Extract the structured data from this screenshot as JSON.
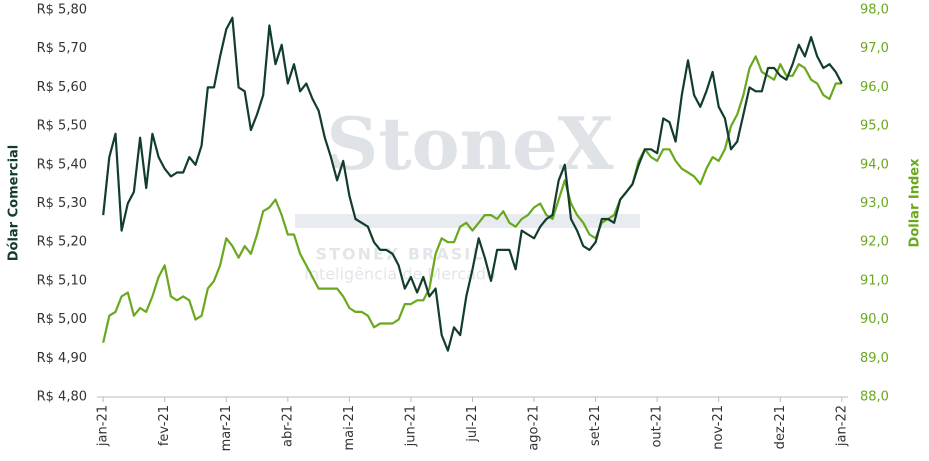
{
  "chart_data": {
    "type": "line",
    "watermark": {
      "brand": "StoneX",
      "sub": "STONEX BRASIL",
      "tagline": "Inteligência de Mercado"
    },
    "y_label": "Dólar Comercial",
    "y2_label": "Dollar Index",
    "x": [
      0,
      0.1,
      0.2,
      0.3,
      0.4,
      0.5,
      0.6,
      0.7,
      0.8,
      0.9,
      1,
      1.1,
      1.2,
      1.3,
      1.4,
      1.5,
      1.6,
      1.7,
      1.8,
      1.9,
      2,
      2.1,
      2.2,
      2.3,
      2.4,
      2.5,
      2.6,
      2.7,
      2.8,
      2.9,
      3,
      3.1,
      3.2,
      3.3,
      3.4,
      3.5,
      3.6,
      3.7,
      3.8,
      3.9,
      4,
      4.1,
      4.2,
      4.3,
      4.4,
      4.5,
      4.6,
      4.7,
      4.8,
      4.9,
      5,
      5.1,
      5.2,
      5.3,
      5.4,
      5.5,
      5.6,
      5.7,
      5.8,
      5.9,
      6,
      6.1,
      6.2,
      6.3,
      6.4,
      6.5,
      6.6,
      6.7,
      6.8,
      6.9,
      7,
      7.1,
      7.2,
      7.3,
      7.4,
      7.5,
      7.6,
      7.7,
      7.8,
      7.9,
      8,
      8.1,
      8.2,
      8.3,
      8.4,
      8.5,
      8.6,
      8.7,
      8.8,
      8.9,
      9,
      9.1,
      9.2,
      9.3,
      9.4,
      9.5,
      9.6,
      9.7,
      9.8,
      9.9,
      10,
      10.1,
      10.2,
      10.3,
      10.4,
      10.5,
      10.6,
      10.7,
      10.8,
      10.9,
      11,
      11.1,
      11.2,
      11.3,
      11.4,
      11.5,
      11.6,
      11.7,
      11.8,
      11.9,
      12
    ],
    "xlim": [
      -0.1,
      12.1
    ],
    "xticks": [
      {
        "value": 0,
        "label": "jan-21"
      },
      {
        "value": 1,
        "label": "fev-21"
      },
      {
        "value": 2,
        "label": "mar-21"
      },
      {
        "value": 3,
        "label": "abr-21"
      },
      {
        "value": 4,
        "label": "mai-21"
      },
      {
        "value": 5,
        "label": "jun-21"
      },
      {
        "value": 6,
        "label": "jul-21"
      },
      {
        "value": 7,
        "label": "ago-21"
      },
      {
        "value": 8,
        "label": "set-21"
      },
      {
        "value": 9,
        "label": "out-21"
      },
      {
        "value": 10,
        "label": "nov-21"
      },
      {
        "value": 11,
        "label": "dez-21"
      },
      {
        "value": 12,
        "label": "jan-22"
      }
    ],
    "ylim": [
      4.8,
      5.8
    ],
    "yticks": [
      {
        "value": 4.8,
        "label": "R$ 4,80"
      },
      {
        "value": 4.9,
        "label": "R$ 4,90"
      },
      {
        "value": 5.0,
        "label": "R$ 5,00"
      },
      {
        "value": 5.1,
        "label": "R$ 5,10"
      },
      {
        "value": 5.2,
        "label": "R$ 5,20"
      },
      {
        "value": 5.3,
        "label": "R$ 5,30"
      },
      {
        "value": 5.4,
        "label": "R$ 5,40"
      },
      {
        "value": 5.5,
        "label": "R$ 5,50"
      },
      {
        "value": 5.6,
        "label": "R$ 5,60"
      },
      {
        "value": 5.7,
        "label": "R$ 5,70"
      },
      {
        "value": 5.8,
        "label": "R$ 5,80"
      }
    ],
    "y2lim": [
      88,
      98
    ],
    "y2ticks": [
      {
        "value": 88,
        "label": "88,0"
      },
      {
        "value": 89,
        "label": "89,0"
      },
      {
        "value": 90,
        "label": "90,0"
      },
      {
        "value": 91,
        "label": "91,0"
      },
      {
        "value": 92,
        "label": "92,0"
      },
      {
        "value": 93,
        "label": "93,0"
      },
      {
        "value": 94,
        "label": "94,0"
      },
      {
        "value": 95,
        "label": "95,0"
      },
      {
        "value": 96,
        "label": "96,0"
      },
      {
        "value": 97,
        "label": "97,0"
      },
      {
        "value": 98,
        "label": "98,0"
      }
    ],
    "grid": false,
    "series": [
      {
        "name": "Dólar Comercial",
        "color": "#123d2c",
        "axis": "y",
        "values": [
          5.27,
          5.42,
          5.48,
          5.23,
          5.3,
          5.33,
          5.47,
          5.34,
          5.48,
          5.42,
          5.39,
          5.37,
          5.38,
          5.38,
          5.42,
          5.4,
          5.45,
          5.6,
          5.6,
          5.68,
          5.75,
          5.78,
          5.6,
          5.59,
          5.49,
          5.53,
          5.58,
          5.76,
          5.66,
          5.71,
          5.61,
          5.66,
          5.59,
          5.61,
          5.57,
          5.54,
          5.47,
          5.42,
          5.36,
          5.41,
          5.32,
          5.26,
          5.25,
          5.24,
          5.2,
          5.18,
          5.18,
          5.17,
          5.14,
          5.08,
          5.11,
          5.07,
          5.11,
          5.06,
          5.08,
          4.96,
          4.92,
          4.98,
          4.96,
          5.06,
          5.13,
          5.21,
          5.16,
          5.1,
          5.18,
          5.18,
          5.18,
          5.13,
          5.23,
          5.22,
          5.21,
          5.24,
          5.26,
          5.27,
          5.36,
          5.4,
          5.26,
          5.23,
          5.19,
          5.18,
          5.2,
          5.26,
          5.26,
          5.25,
          5.31,
          5.33,
          5.35,
          5.4,
          5.44,
          5.44,
          5.43,
          5.52,
          5.51,
          5.46,
          5.58,
          5.67,
          5.58,
          5.55,
          5.59,
          5.64,
          5.55,
          5.52,
          5.44,
          5.46,
          5.53,
          5.6,
          5.59,
          5.59,
          5.65,
          5.65,
          5.63,
          5.62,
          5.66,
          5.71,
          5.68,
          5.73,
          5.68,
          5.65,
          5.66,
          5.64,
          5.61
        ]
      },
      {
        "name": "Dollar Index",
        "color": "#6aa81e",
        "axis": "y2",
        "values": [
          89.4,
          90.1,
          90.2,
          90.6,
          90.7,
          90.1,
          90.3,
          90.2,
          90.6,
          91.1,
          91.4,
          90.6,
          90.5,
          90.6,
          90.5,
          90.0,
          90.1,
          90.8,
          91.0,
          91.4,
          92.1,
          91.9,
          91.6,
          91.9,
          91.7,
          92.2,
          92.8,
          92.9,
          93.1,
          92.7,
          92.2,
          92.2,
          91.7,
          91.4,
          91.1,
          90.8,
          90.8,
          90.8,
          90.8,
          90.6,
          90.3,
          90.2,
          90.2,
          90.1,
          89.8,
          89.9,
          89.9,
          89.9,
          90.0,
          90.4,
          90.4,
          90.5,
          90.5,
          90.8,
          91.7,
          92.1,
          92.0,
          92.0,
          92.4,
          92.5,
          92.3,
          92.5,
          92.7,
          92.7,
          92.6,
          92.8,
          92.5,
          92.4,
          92.6,
          92.7,
          92.9,
          93.0,
          92.7,
          92.6,
          93.1,
          93.6,
          93.0,
          92.7,
          92.5,
          92.2,
          92.1,
          92.5,
          92.6,
          92.7,
          93.1,
          93.3,
          93.5,
          94.1,
          94.4,
          94.2,
          94.1,
          94.4,
          94.4,
          94.1,
          93.9,
          93.8,
          93.7,
          93.5,
          93.9,
          94.2,
          94.1,
          94.4,
          95.0,
          95.3,
          95.8,
          96.5,
          96.8,
          96.4,
          96.3,
          96.2,
          96.6,
          96.3,
          96.3,
          96.6,
          96.5,
          96.2,
          96.1,
          95.8,
          95.7,
          96.1,
          96.1
        ]
      }
    ]
  }
}
